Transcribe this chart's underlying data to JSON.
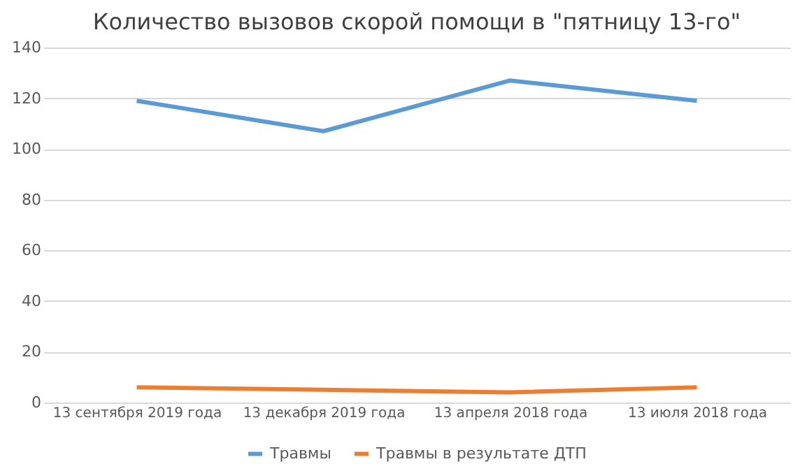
{
  "chart_data": {
    "type": "line",
    "title": "Количество вызовов скорой помощи в \"пятницу 13-го\"",
    "categories": [
      "13 сентября 2019 года",
      "13 декабря 2019 года",
      "13 апреля 2018 года",
      "13 июля 2018 года"
    ],
    "series": [
      {
        "name": "Травмы",
        "color": "#5b9bd5",
        "values": [
          119,
          107,
          127,
          119
        ]
      },
      {
        "name": "Травмы в результате ДТП",
        "color": "#ed7d31",
        "values": [
          6,
          5,
          4,
          6
        ]
      }
    ],
    "ylim": [
      0,
      140
    ],
    "yticks": [
      0,
      20,
      40,
      60,
      80,
      100,
      120,
      140
    ],
    "grid": "y",
    "legend": "bottom",
    "marker": "none",
    "line_style": "solid"
  }
}
